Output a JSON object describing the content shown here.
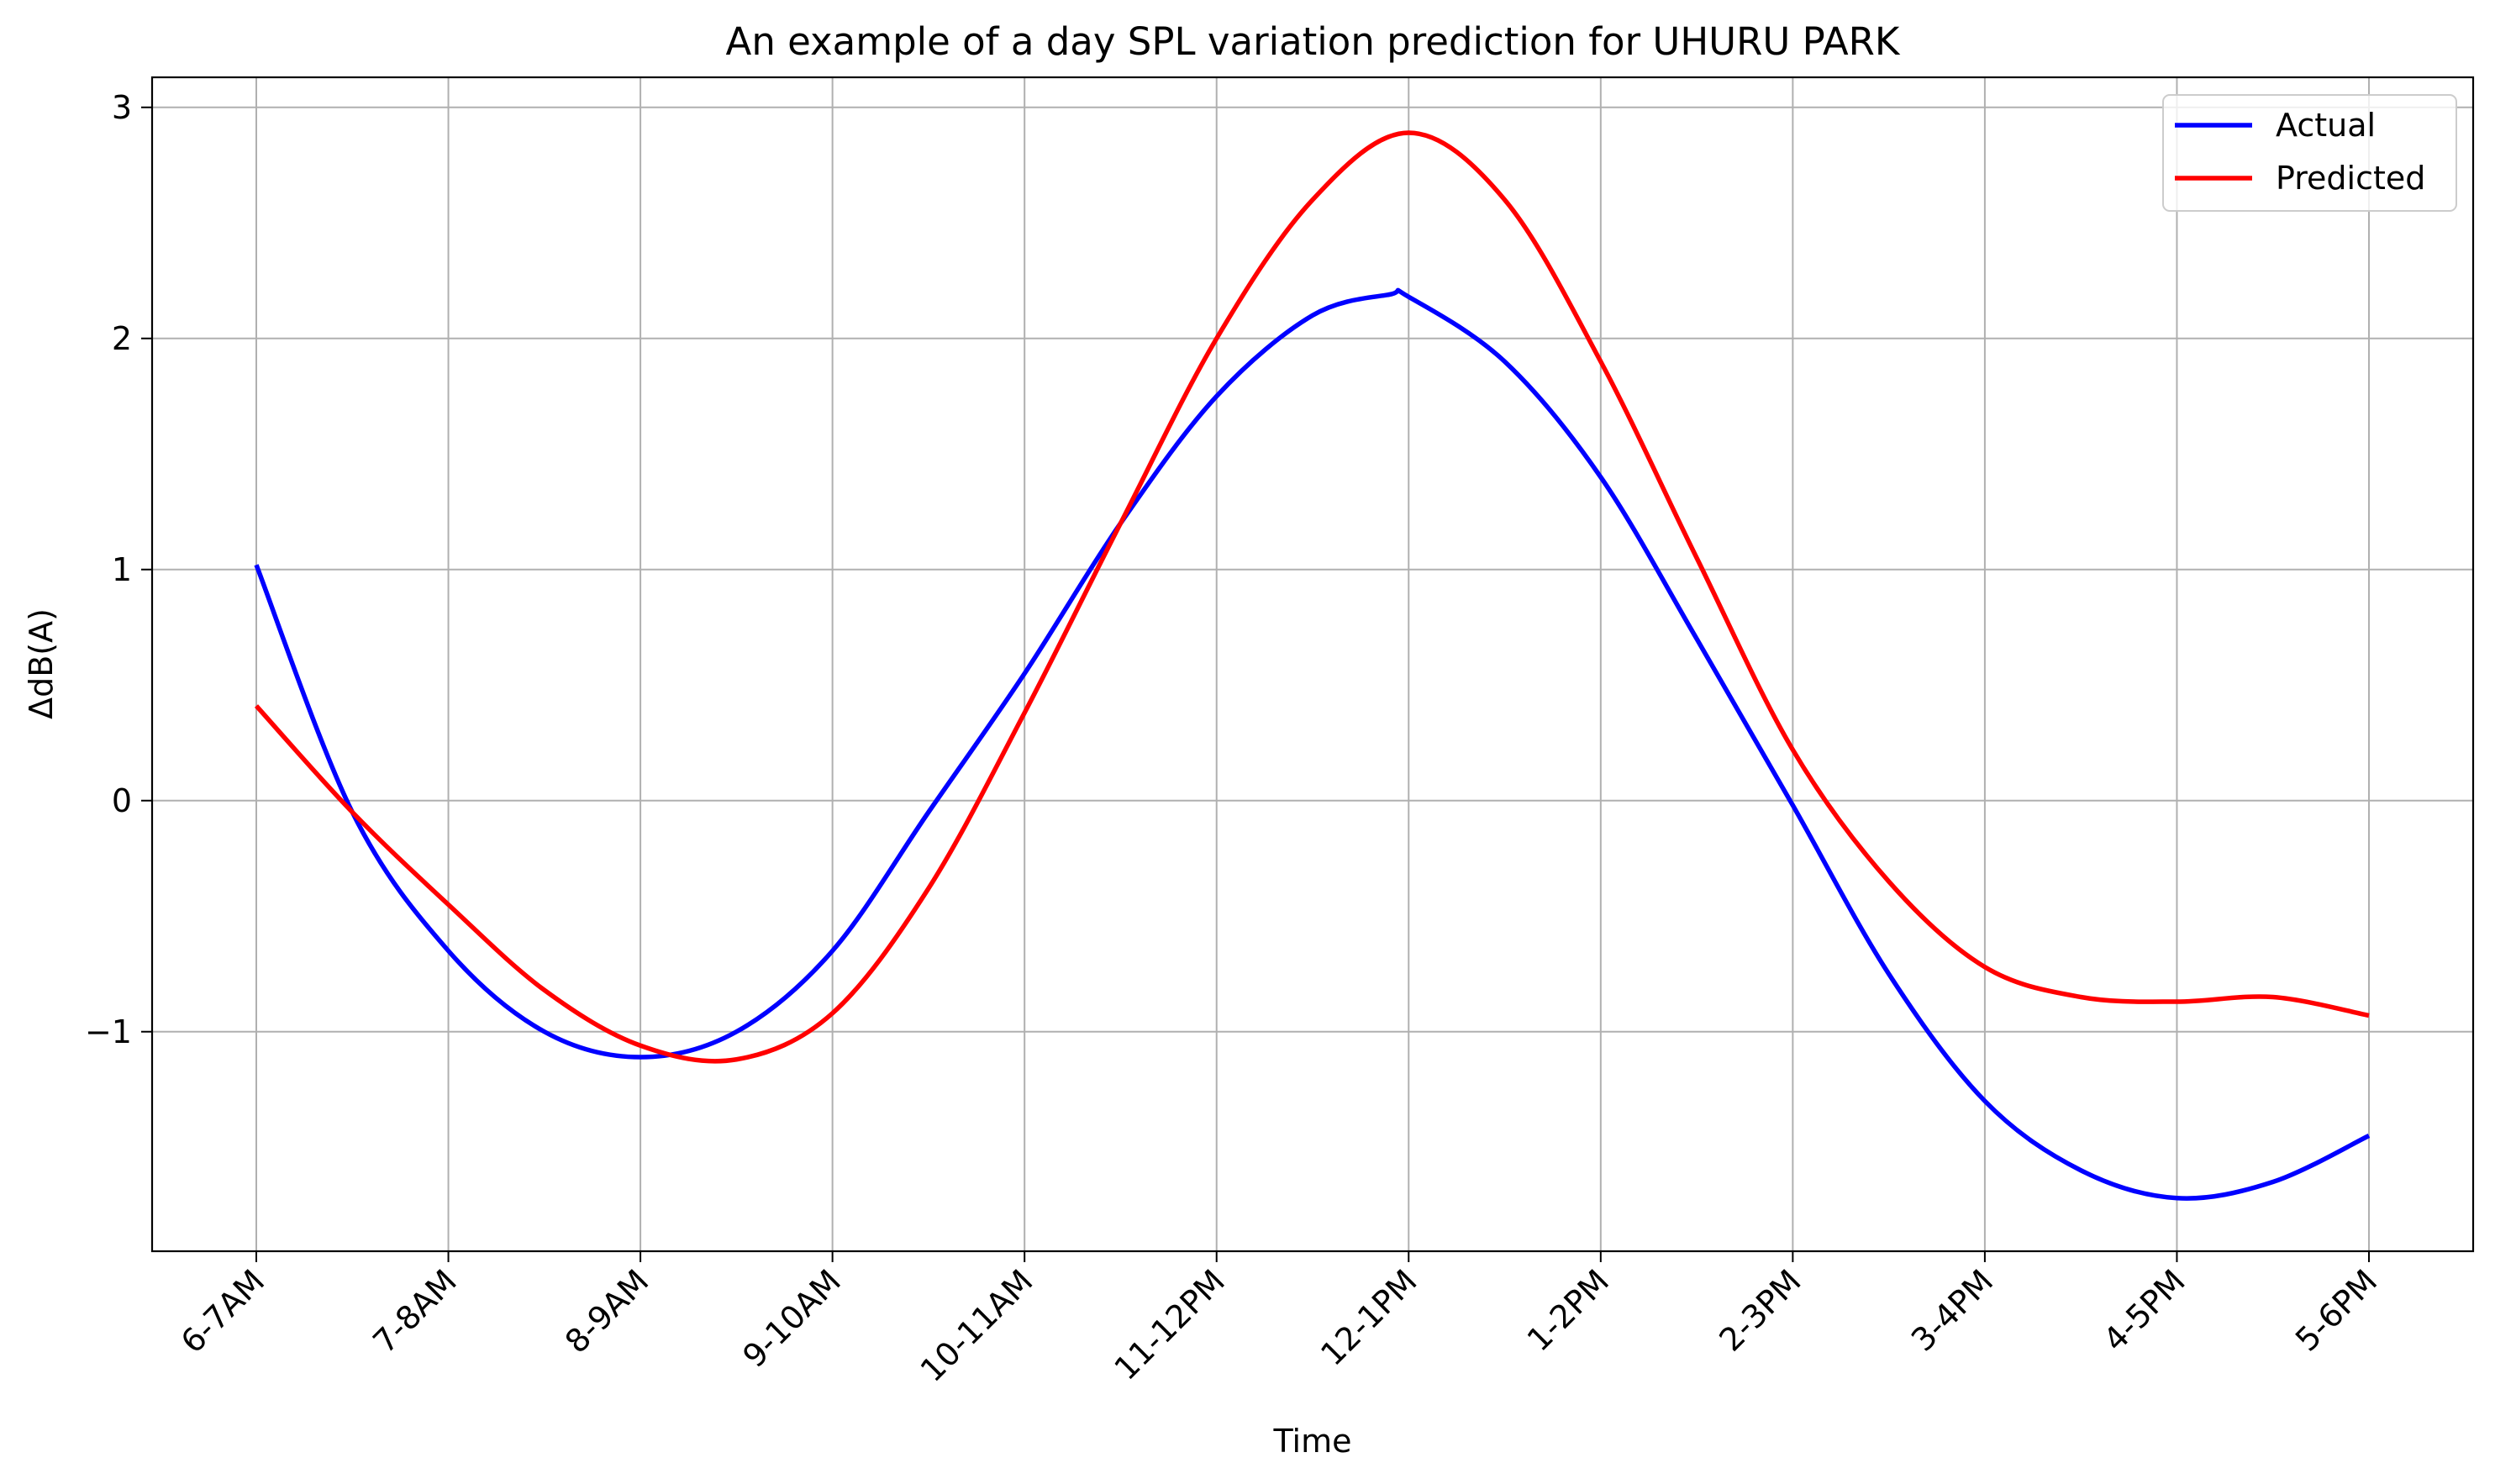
{
  "chart_data": {
    "type": "line",
    "title": "An example of a day SPL variation prediction for UHURU PARK",
    "xlabel": "Time",
    "ylabel": "ΔdB(A)",
    "categories": [
      "6-7AM",
      "7-8AM",
      "8-9AM",
      "9-10AM",
      "10-11AM",
      "11-12PM",
      "12-1PM",
      "1-2PM",
      "2-3PM",
      "3-4PM",
      "4-5PM",
      "5-6PM"
    ],
    "yticks": [
      "−1",
      "0",
      "1",
      "2",
      "3"
    ],
    "ylim": [
      -1.95,
      3.13
    ],
    "grid": true,
    "legend_position": "top-right",
    "series": [
      {
        "name": "Actual",
        "color": "#0000ff",
        "x": [
          0,
          0.5,
          1,
          1.5,
          2,
          2.5,
          3,
          3.5,
          4,
          4.5,
          5,
          5.5,
          5.9,
          6,
          6.5,
          7,
          7.5,
          8,
          8.5,
          9,
          9.5,
          10,
          10.5,
          11
        ],
        "values": [
          1.02,
          -0.05,
          -0.65,
          -1.0,
          -1.11,
          -1.0,
          -0.65,
          -0.05,
          0.55,
          1.2,
          1.75,
          2.1,
          2.19,
          2.18,
          1.9,
          1.4,
          0.7,
          -0.02,
          -0.75,
          -1.3,
          -1.6,
          -1.72,
          -1.65,
          -1.45
        ]
      },
      {
        "name": "Predicted",
        "color": "#ff0000",
        "x": [
          0,
          0.5,
          1,
          1.5,
          2,
          2.5,
          3,
          3.5,
          4,
          4.5,
          5,
          5.5,
          6,
          6.5,
          7,
          7.5,
          8,
          8.5,
          9,
          9.5,
          10,
          10.5,
          11
        ],
        "values": [
          0.41,
          -0.05,
          -0.45,
          -0.82,
          -1.06,
          -1.12,
          -0.92,
          -0.38,
          0.38,
          1.2,
          2.0,
          2.6,
          2.89,
          2.6,
          1.9,
          1.05,
          0.22,
          -0.35,
          -0.72,
          -0.85,
          -0.87,
          -0.85,
          -0.93
        ]
      }
    ]
  }
}
